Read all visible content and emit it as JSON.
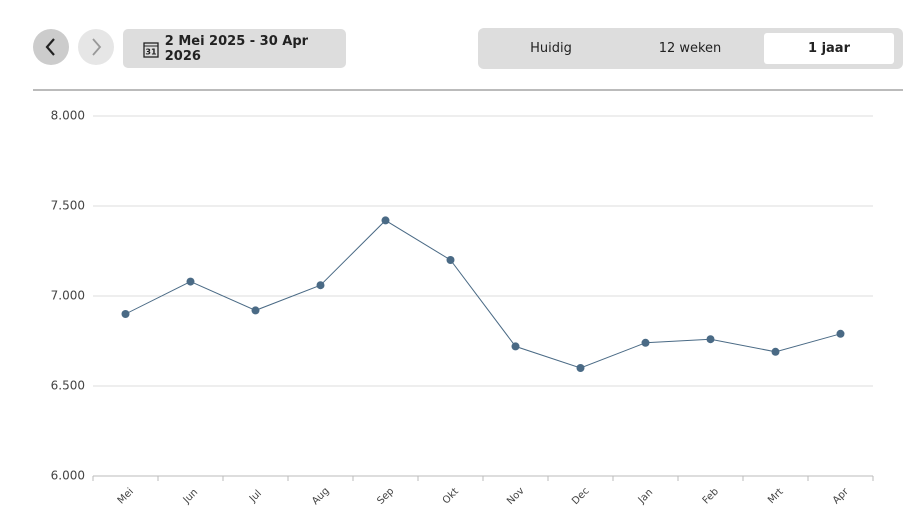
{
  "header": {
    "date_range": "2 Mei 2025 - 30 Apr 2026",
    "calendar_day": "31",
    "tabs": [
      "Huidig",
      "12 weken",
      "1 jaar"
    ],
    "selected_tab": 2
  },
  "chart_data": {
    "type": "line",
    "categories": [
      "Mei",
      "Jun",
      "Jul",
      "Aug",
      "Sep",
      "Okt",
      "Nov",
      "Dec",
      "Jan",
      "Feb",
      "Mrt",
      "Apr"
    ],
    "series": [
      {
        "color": "#4a6a85",
        "values": [
          6900,
          7080,
          6920,
          7060,
          7420,
          7200,
          6720,
          6600,
          6740,
          6760,
          6690,
          6790
        ]
      }
    ],
    "ylim": [
      6000,
      8000
    ],
    "yticks": [
      {
        "value": 6000,
        "label": "6.000"
      },
      {
        "value": 6500,
        "label": "6.500"
      },
      {
        "value": 7000,
        "label": "7.000"
      },
      {
        "value": 7500,
        "label": "7.500"
      },
      {
        "value": 8000,
        "label": "8.000"
      }
    ],
    "grid": true
  }
}
